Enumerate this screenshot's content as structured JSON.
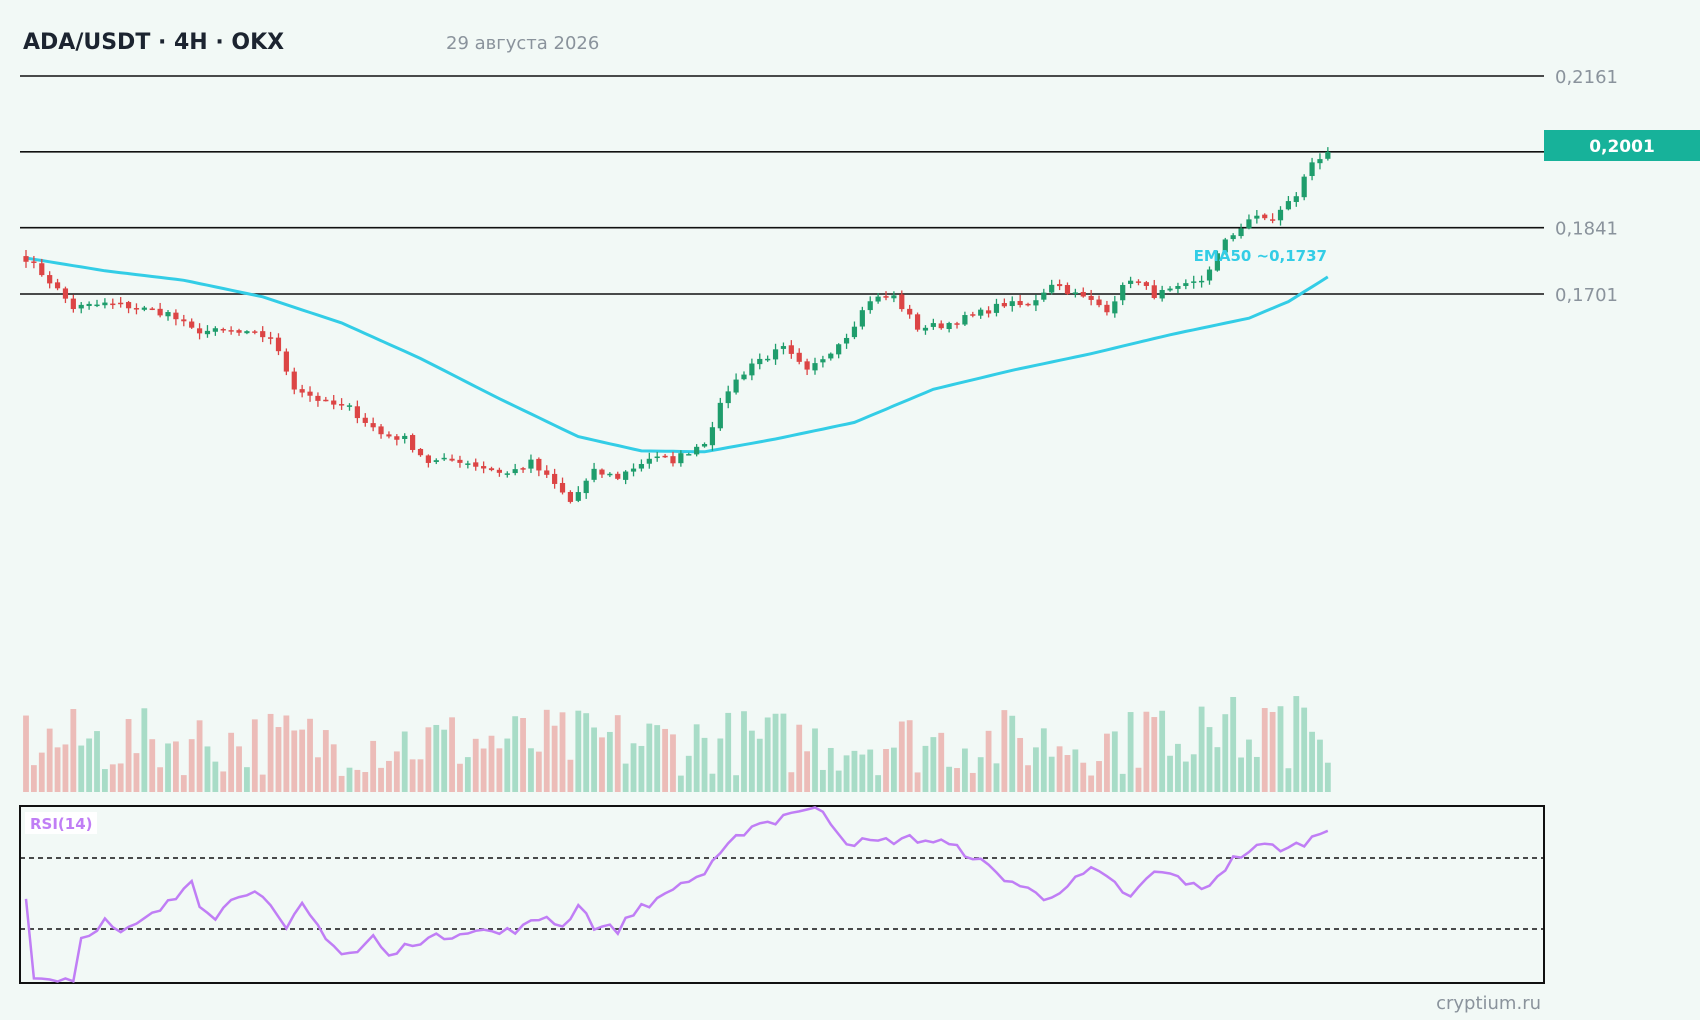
{
  "header": {
    "title": "ADA/USDT · 4H · OKX",
    "date": "29 августа 2026"
  },
  "colors": {
    "up": "#1f9d6c",
    "down": "#dc4545",
    "up_volume": "#a8dcc7",
    "down_volume": "#ecbcb8",
    "ema": "#33cde6",
    "rsi": "#c07ef5",
    "badge": "#17b29a",
    "level_line": "#111111"
  },
  "price_badge": "0,2001",
  "ema_label": "EMA50 ~0,1737",
  "rsi_label": "RSI(14)",
  "watermark": "cryptium.ru",
  "chart_data": {
    "type": "candlestick",
    "title": "ADA/USDT · 4H · OKX",
    "xlabel": "",
    "ylabel": "",
    "ylim": [
      0.121,
      0.221
    ],
    "grid": false,
    "levels": [
      {
        "value": 0.2161,
        "label": "0,2161"
      },
      {
        "value": 0.2001,
        "label": "0,2001",
        "current": true
      },
      {
        "value": 0.1841,
        "label": "0,1841"
      },
      {
        "value": 0.1701,
        "label": "0,1701"
      }
    ],
    "anchors": [
      [
        0,
        0.1777
      ],
      [
        3,
        0.1728
      ],
      [
        6,
        0.1672
      ],
      [
        10,
        0.168
      ],
      [
        13,
        0.1675
      ],
      [
        18,
        0.166
      ],
      [
        21,
        0.1625
      ],
      [
        26,
        0.162
      ],
      [
        31,
        0.161
      ],
      [
        34,
        0.1505
      ],
      [
        38,
        0.147
      ],
      [
        41,
        0.146
      ],
      [
        45,
        0.1405
      ],
      [
        48,
        0.1395
      ],
      [
        51,
        0.1347
      ],
      [
        55,
        0.135
      ],
      [
        58,
        0.1335
      ],
      [
        61,
        0.1322
      ],
      [
        64,
        0.1345
      ],
      [
        67,
        0.1298
      ],
      [
        69,
        0.1262
      ],
      [
        72,
        0.1325
      ],
      [
        75,
        0.1315
      ],
      [
        79,
        0.1355
      ],
      [
        82,
        0.135
      ],
      [
        86,
        0.139
      ],
      [
        89,
        0.15
      ],
      [
        92,
        0.1555
      ],
      [
        96,
        0.1585
      ],
      [
        99,
        0.1535
      ],
      [
        104,
        0.1615
      ],
      [
        107,
        0.169
      ],
      [
        110,
        0.1695
      ],
      [
        113,
        0.163
      ],
      [
        116,
        0.1635
      ],
      [
        120,
        0.1655
      ],
      [
        124,
        0.168
      ],
      [
        127,
        0.1675
      ],
      [
        130,
        0.1725
      ],
      [
        133,
        0.17
      ],
      [
        137,
        0.167
      ],
      [
        140,
        0.1735
      ],
      [
        143,
        0.17
      ],
      [
        146,
        0.171
      ],
      [
        149,
        0.173
      ],
      [
        152,
        0.181
      ],
      [
        155,
        0.186
      ],
      [
        158,
        0.186
      ],
      [
        161,
        0.191
      ],
      [
        163,
        0.198
      ],
      [
        165,
        0.2001
      ]
    ],
    "ema50": [
      [
        0,
        0.1777
      ],
      [
        10,
        0.175
      ],
      [
        20,
        0.173
      ],
      [
        30,
        0.1695
      ],
      [
        40,
        0.164
      ],
      [
        50,
        0.1565
      ],
      [
        60,
        0.148
      ],
      [
        70,
        0.14
      ],
      [
        78,
        0.137
      ],
      [
        86,
        0.1368
      ],
      [
        95,
        0.1395
      ],
      [
        105,
        0.143
      ],
      [
        115,
        0.15
      ],
      [
        125,
        0.154
      ],
      [
        135,
        0.1575
      ],
      [
        145,
        0.1615
      ],
      [
        155,
        0.165
      ],
      [
        160,
        0.1685
      ],
      [
        165,
        0.1737
      ]
    ],
    "rsi": {
      "ylim": [
        0,
        100
      ],
      "levels": [
        70,
        30
      ],
      "anchors": [
        [
          0,
          50
        ],
        [
          1,
          2
        ],
        [
          6,
          2
        ],
        [
          7,
          25
        ],
        [
          10,
          35
        ],
        [
          12,
          27
        ],
        [
          16,
          38
        ],
        [
          19,
          48
        ],
        [
          21,
          60
        ],
        [
          22,
          45
        ],
        [
          24,
          38
        ],
        [
          27,
          50
        ],
        [
          29,
          54
        ],
        [
          33,
          29
        ],
        [
          35,
          44
        ],
        [
          37,
          32
        ],
        [
          40,
          16
        ],
        [
          42,
          17
        ],
        [
          44,
          26
        ],
        [
          46,
          14
        ],
        [
          49,
          23
        ],
        [
          53,
          26
        ],
        [
          56,
          30
        ],
        [
          60,
          28
        ],
        [
          63,
          31
        ],
        [
          66,
          38
        ],
        [
          68,
          31
        ],
        [
          70,
          45
        ],
        [
          72,
          32
        ],
        [
          75,
          30
        ],
        [
          78,
          44
        ],
        [
          80,
          46
        ],
        [
          82,
          54
        ],
        [
          86,
          62
        ],
        [
          90,
          82
        ],
        [
          92,
          90
        ],
        [
          95,
          92
        ],
        [
          97,
          98
        ],
        [
          101,
          98
        ],
        [
          104,
          80
        ],
        [
          108,
          80
        ],
        [
          112,
          82
        ],
        [
          116,
          80
        ],
        [
          120,
          72
        ],
        [
          123,
          62
        ],
        [
          126,
          55
        ],
        [
          129,
          48
        ],
        [
          132,
          55
        ],
        [
          135,
          64
        ],
        [
          138,
          56
        ],
        [
          140,
          48
        ],
        [
          143,
          63
        ],
        [
          146,
          60
        ],
        [
          149,
          52
        ],
        [
          153,
          70
        ],
        [
          155,
          75
        ],
        [
          157,
          78
        ],
        [
          160,
          76
        ],
        [
          163,
          82
        ],
        [
          165,
          88
        ]
      ]
    }
  }
}
